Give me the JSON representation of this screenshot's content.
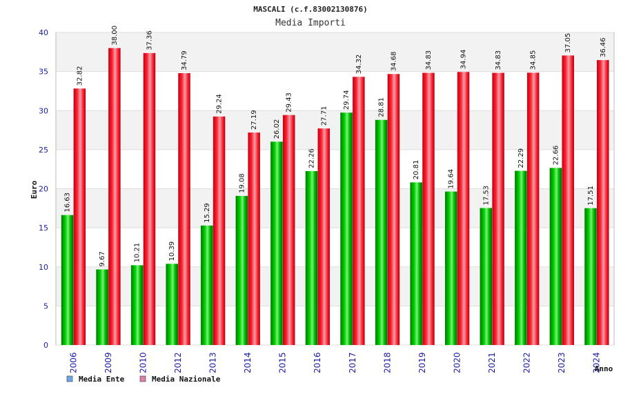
{
  "chart_data": {
    "type": "bar",
    "title": "MASCALI (c.f.83002130876)",
    "subtitle": "Media Importi",
    "xlabel": "Anno",
    "ylabel": "Euro",
    "ylim": [
      0,
      40
    ],
    "yticks": [
      0,
      5,
      10,
      15,
      20,
      25,
      30,
      35,
      40
    ],
    "grid": true,
    "legend_position": "bottom-left",
    "categories": [
      "2006",
      "2009",
      "2010",
      "2012",
      "2013",
      "2014",
      "2015",
      "2016",
      "2017",
      "2018",
      "2019",
      "2020",
      "2021",
      "2022",
      "2023",
      "2024"
    ],
    "series": [
      {
        "name": "Media Ente",
        "color": "#00c000",
        "legend_color": "#6ea6e8",
        "values": [
          16.63,
          9.67,
          10.21,
          10.39,
          15.29,
          19.08,
          26.02,
          22.26,
          29.74,
          28.81,
          20.81,
          19.64,
          17.53,
          22.29,
          22.66,
          17.51
        ],
        "labels": [
          "16.63",
          "9.67",
          "10.21",
          "10.39",
          "15.29",
          "19.08",
          "26.02",
          "22.26",
          "29.74",
          "28.81",
          "20.81",
          "19.64",
          "17.53",
          "22.29",
          "22.66",
          "17.51"
        ]
      },
      {
        "name": "Media Nazionale",
        "color": "#ee1020",
        "legend_color": "#e080a8",
        "values": [
          32.82,
          38.0,
          37.36,
          34.79,
          29.24,
          27.19,
          29.43,
          27.71,
          34.32,
          34.68,
          34.83,
          34.94,
          34.83,
          34.85,
          37.05,
          36.46
        ],
        "labels": [
          "32.82",
          "38.00",
          "37.36",
          "34.79",
          "29.24",
          "27.19",
          "29.43",
          "27.71",
          "34.32",
          "34.68",
          "34.83",
          "34.94",
          "34.83",
          "34.85",
          "37.05",
          "36.46"
        ]
      }
    ]
  }
}
